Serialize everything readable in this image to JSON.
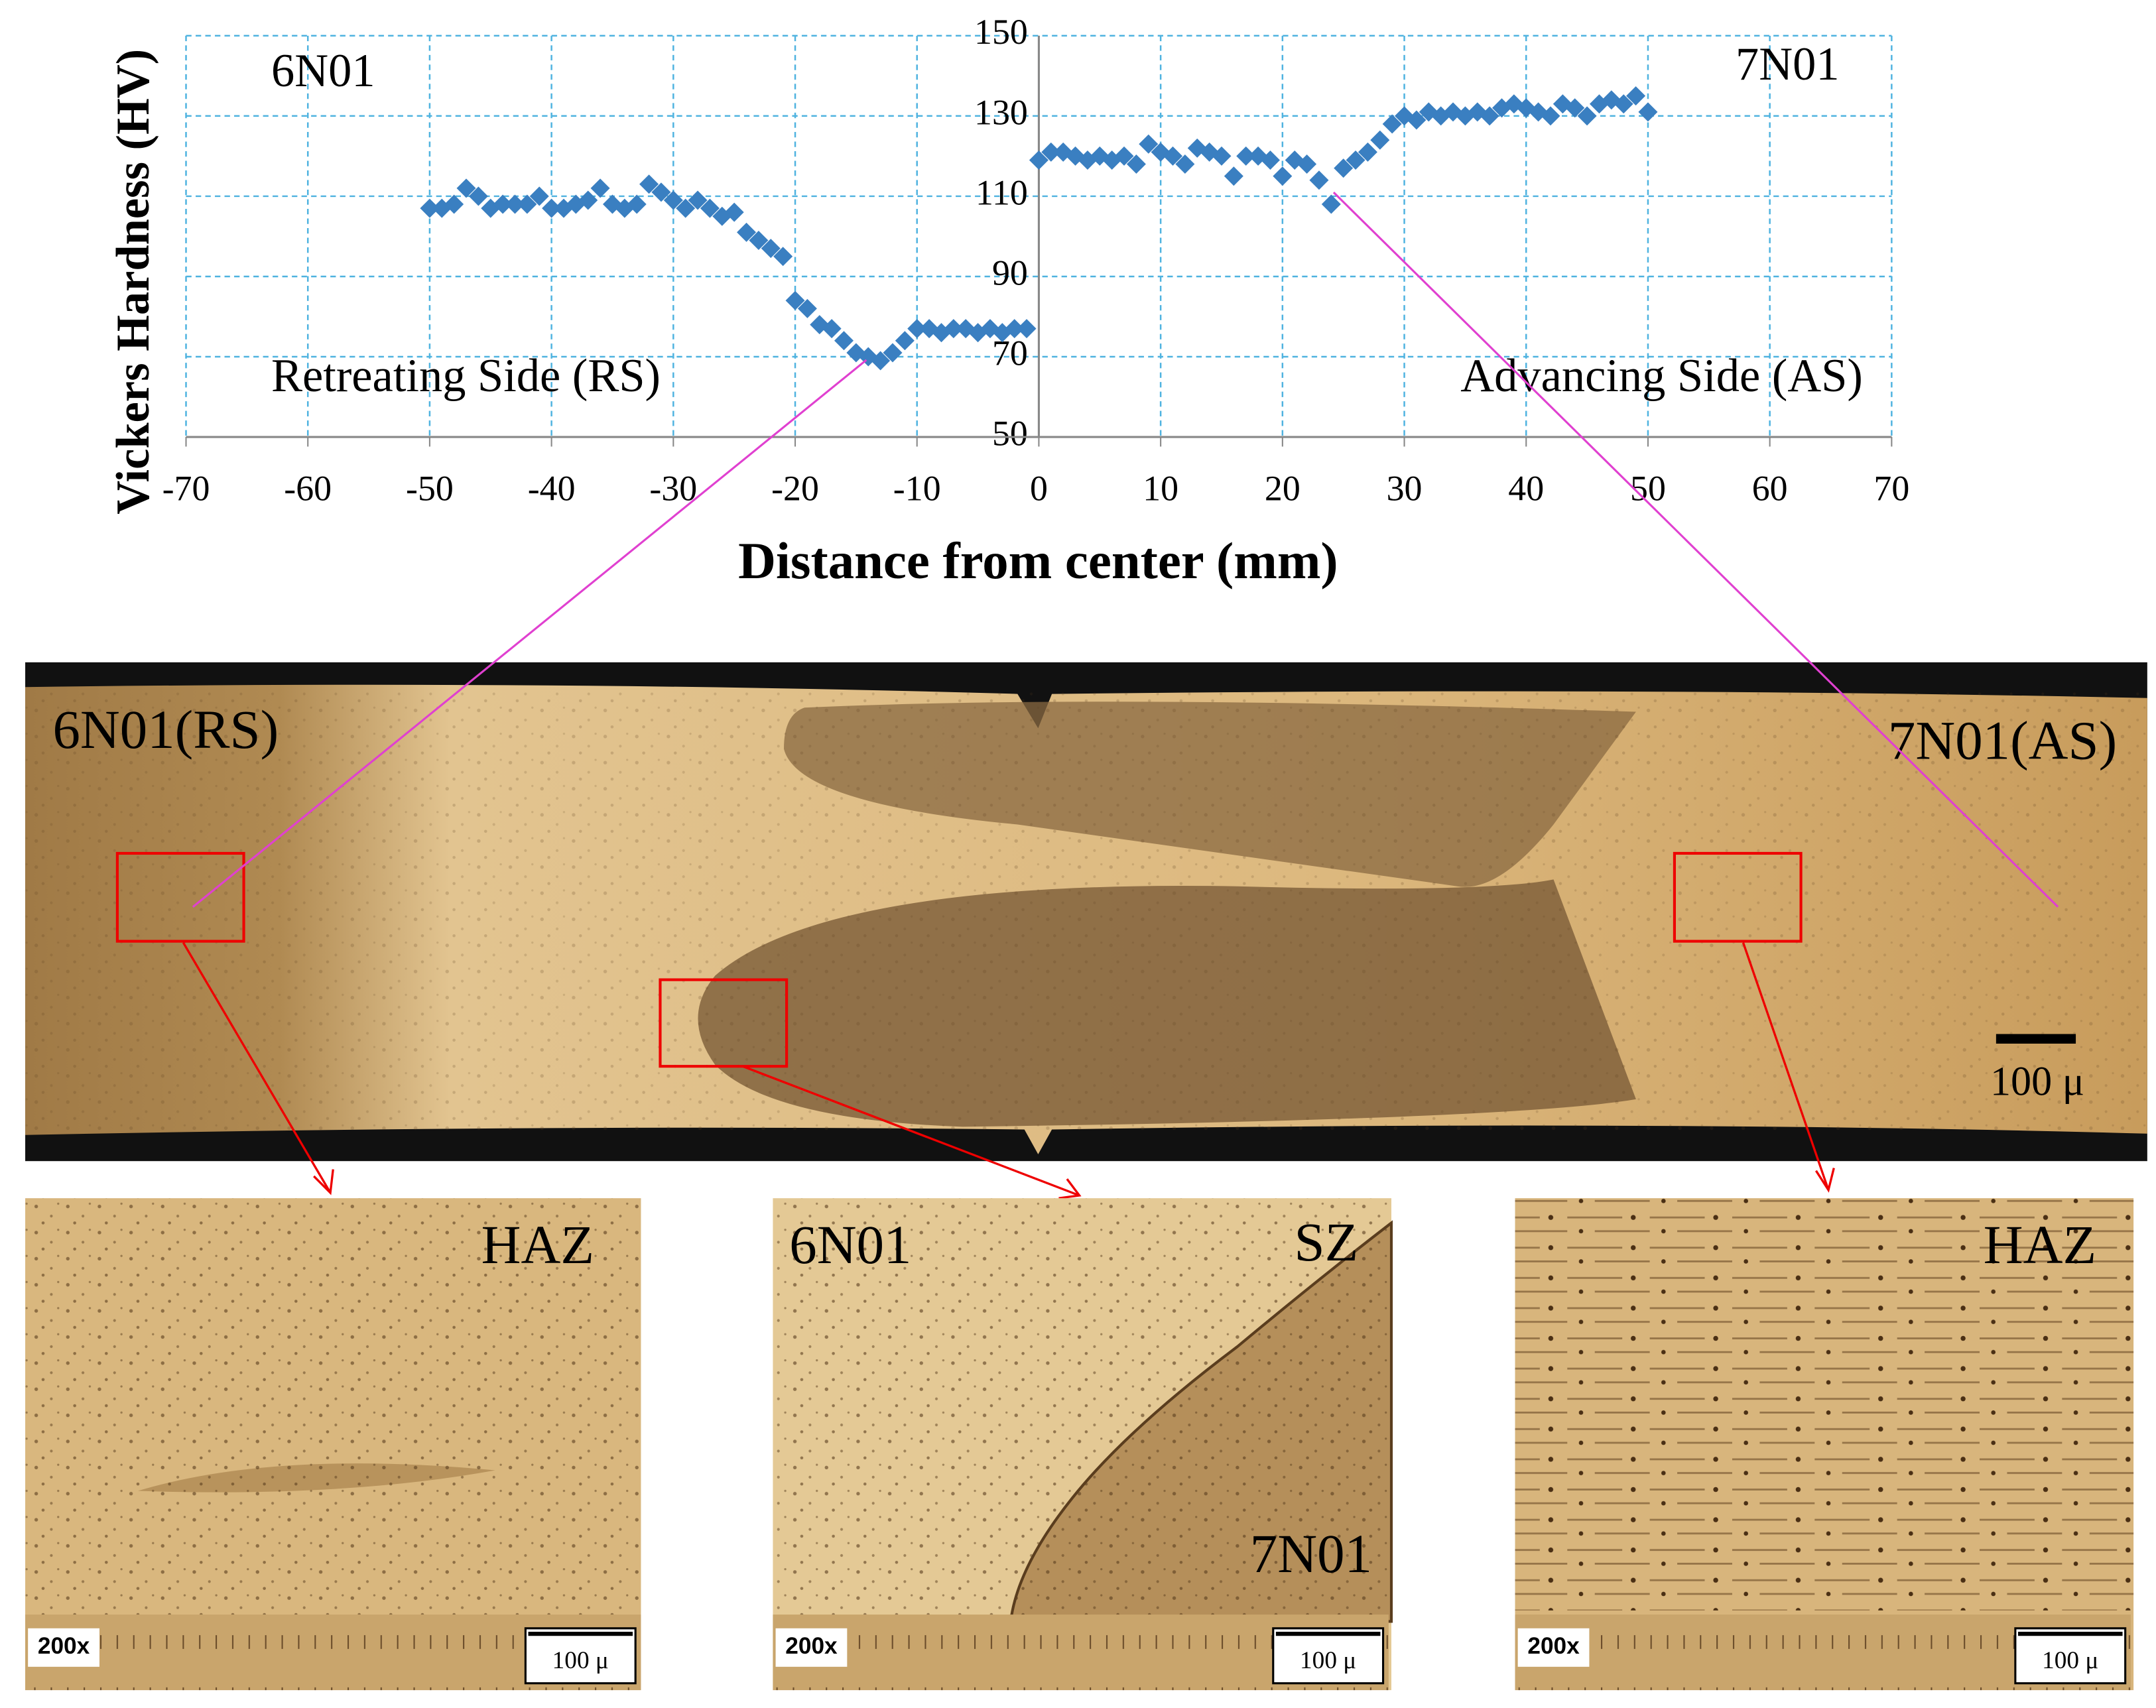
{
  "chart_data": {
    "type": "scatter",
    "x_label": "Distance from center (mm)",
    "y_label": "Vickers Hardness (HV)",
    "annotations": [
      "6N01",
      "7N01",
      "Retreating Side (RS)",
      "Advancing Side (AS)"
    ],
    "color": "#3a7fc1",
    "x": [
      -50,
      -49,
      -48,
      -47,
      -46,
      -45,
      -44,
      -43,
      -42,
      -41,
      -40,
      -39,
      -38,
      -37,
      -36,
      -35,
      -34,
      -33,
      -32,
      -31,
      -30,
      -29,
      -28,
      -27,
      -26,
      -25,
      -24,
      -23,
      -22,
      -21,
      -20,
      -19,
      -18,
      -17,
      -16,
      -15,
      -14,
      -13,
      -12,
      -11,
      -10,
      -9,
      -8,
      -7,
      -6,
      -5,
      -4,
      -3,
      -2,
      -1,
      0,
      1,
      2,
      3,
      4,
      5,
      6,
      7,
      8,
      9,
      10,
      11,
      12,
      13,
      14,
      15,
      16,
      17,
      18,
      19,
      20,
      21,
      22,
      23,
      24,
      25,
      26,
      27,
      28,
      29,
      30,
      31,
      32,
      33,
      34,
      35,
      36,
      37,
      38,
      39,
      40,
      41,
      42,
      43,
      44,
      45,
      46,
      47,
      48,
      49,
      50
    ],
    "values": [
      107,
      107,
      108,
      112,
      110,
      107,
      108,
      108,
      108,
      110,
      107,
      107,
      108,
      109,
      112,
      108,
      107,
      108,
      113,
      111,
      109,
      107,
      109,
      107,
      105,
      106,
      101,
      99,
      97,
      95,
      84,
      82,
      78,
      77,
      74,
      71,
      70,
      69,
      71,
      74,
      77,
      77,
      76,
      77,
      77,
      76,
      77,
      76,
      77,
      77,
      119,
      121,
      121,
      120,
      119,
      120,
      119,
      120,
      118,
      123,
      121,
      120,
      118,
      122,
      121,
      120,
      115,
      120,
      120,
      119,
      115,
      119,
      118,
      114,
      108,
      117,
      119,
      121,
      124,
      128,
      130,
      129,
      131,
      130,
      131,
      130,
      131,
      130,
      132,
      133,
      132,
      131,
      130,
      133,
      132,
      130,
      133,
      134,
      133,
      135,
      131
    ],
    "xlim": [
      -70,
      70
    ],
    "xticks": [
      -70,
      -60,
      -50,
      -40,
      -30,
      -20,
      -10,
      0,
      10,
      20,
      30,
      40,
      50,
      60,
      70
    ],
    "ylim": [
      50,
      150
    ],
    "yticks": [
      50,
      70,
      90,
      110,
      130,
      150
    ],
    "grid": true
  },
  "micrographs": {
    "overview": {
      "labels": [
        "6N01(RS)",
        "7N01(AS)"
      ],
      "scale_bar": "100 μ"
    },
    "panels": [
      {
        "labels": [
          "HAZ"
        ],
        "magnification": "200x",
        "scale_bar": "100 μ"
      },
      {
        "labels": [
          "6N01",
          "SZ",
          "7N01"
        ],
        "magnification": "200x",
        "scale_bar": "100 μ"
      },
      {
        "labels": [
          "HAZ"
        ],
        "magnification": "200x",
        "scale_bar": "100 μ"
      }
    ]
  }
}
